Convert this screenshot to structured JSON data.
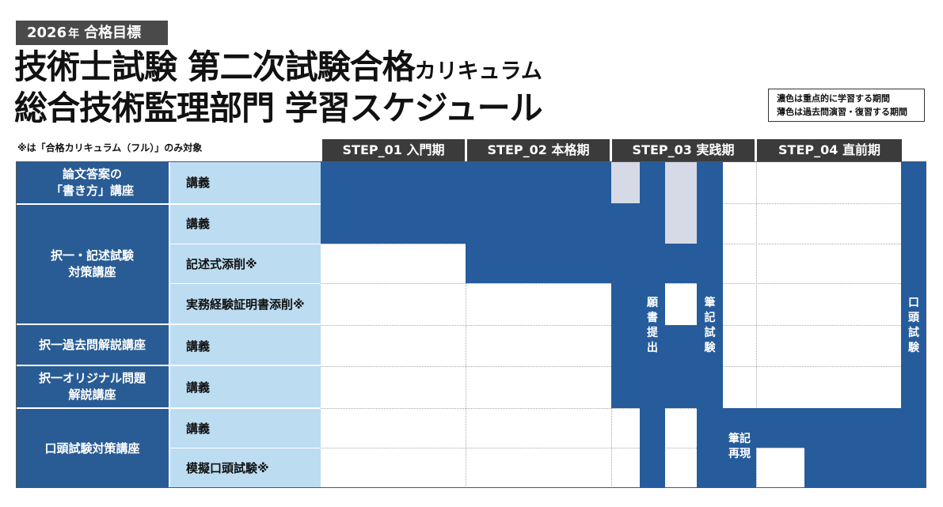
{
  "header": {
    "badge_year": "2026",
    "badge_nen": "年",
    "badge_goal": "合格目標",
    "title_line1_main": "技術士試験 第二次試験合格",
    "title_line1_small": "カリキュラム",
    "title_line2": "総合技術監理部門 学習スケジュール"
  },
  "legend": {
    "dark": "濃色は重点的に学習する期間",
    "light": "薄色は過去問演習・復習する期間"
  },
  "note": "※は「合格カリキュラム（フル）」のみ対象",
  "steps": [
    "STEP_01 入門期",
    "STEP_02 本格期",
    "STEP_03 実践期",
    "STEP_04 直前期"
  ],
  "courses": [
    {
      "line1": "論文答案の",
      "line2": "「書き方」講座"
    },
    {
      "line1": "択一・記述試験",
      "line2": "対策講座"
    },
    {
      "line1": "択一過去問解説講座",
      "line2": ""
    },
    {
      "line1": "択一オリジナル問題",
      "line2": "解説講座"
    },
    {
      "line1": "口頭試験対策講座",
      "line2": ""
    }
  ],
  "rows": [
    "講義",
    "講義",
    "記述式添削※",
    "実務経験証明書添削※",
    "講義",
    "講義",
    "講義",
    "模擬口頭試験※"
  ],
  "milestones": {
    "application": [
      "願",
      "書",
      "提",
      "出"
    ],
    "written_exam": [
      "筆",
      "記",
      "試",
      "験"
    ],
    "written_reproduction": [
      "筆記",
      "再現"
    ],
    "oral_exam": [
      "口",
      "頭",
      "試",
      "験"
    ]
  },
  "colors": {
    "dark": "#265c9b",
    "light": "#d6dae6",
    "course_bg": "#295c94",
    "row_label_bg": "#bcdcf1",
    "step_bg": "#3b3b3b"
  }
}
